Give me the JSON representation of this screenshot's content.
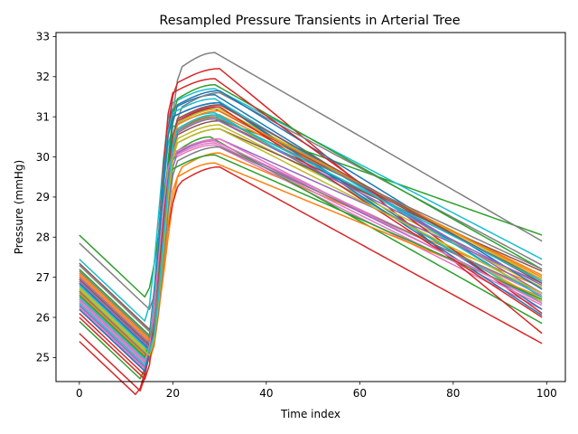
{
  "chart_data": {
    "type": "line",
    "title": "Resampled Pressure Transients in Arterial Tree",
    "xlabel": "Time index",
    "ylabel": "Pressure (mmHg)",
    "xlim": [
      -5,
      104
    ],
    "ylim": [
      24.4,
      33.1
    ],
    "xticks": [
      0,
      20,
      40,
      60,
      80,
      100
    ],
    "yticks": [
      25,
      26,
      27,
      28,
      29,
      30,
      31,
      32,
      33
    ],
    "grid": false,
    "legend": "none",
    "n_points": 100,
    "series": [
      {
        "color": "#1f77b4",
        "start": 26.65,
        "onset": 14,
        "rise": 6,
        "peak_time": 27,
        "peak": 31.55,
        "end": 26.5
      },
      {
        "color": "#ff7f0e",
        "start": 26.95,
        "onset": 15,
        "rise": 7,
        "peak_time": 28,
        "peak": 30.1,
        "end": 26.75
      },
      {
        "color": "#2ca02c",
        "start": 28.05,
        "onset": 14,
        "rise": 7,
        "peak_time": 27,
        "peak": 30.95,
        "end": 28.05
      },
      {
        "color": "#d62728",
        "start": 25.4,
        "onset": 12,
        "rise": 10,
        "peak_time": 28,
        "peak": 29.75,
        "end": 25.35
      },
      {
        "color": "#9467bd",
        "start": 26.3,
        "onset": 14,
        "rise": 6,
        "peak_time": 27,
        "peak": 30.4,
        "end": 26.4
      },
      {
        "color": "#8c564b",
        "start": 26.85,
        "onset": 15,
        "rise": 6,
        "peak_time": 28,
        "peak": 30.9,
        "end": 26.95
      },
      {
        "color": "#e377c2",
        "start": 26.2,
        "onset": 14,
        "rise": 6,
        "peak_time": 27,
        "peak": 30.3,
        "end": 26.2
      },
      {
        "color": "#7f7f7f",
        "start": 27.85,
        "onset": 15,
        "rise": 7,
        "peak_time": 27,
        "peak": 32.6,
        "end": 27.9
      },
      {
        "color": "#bcbd22",
        "start": 26.55,
        "onset": 15,
        "rise": 6,
        "peak_time": 28,
        "peak": 31.0,
        "end": 26.4
      },
      {
        "color": "#17becf",
        "start": 27.45,
        "onset": 14,
        "rise": 6,
        "peak_time": 27,
        "peak": 31.7,
        "end": 27.45
      },
      {
        "color": "#1f77b4",
        "start": 26.45,
        "onset": 14,
        "rise": 6,
        "peak_time": 28,
        "peak": 31.35,
        "end": 26.2
      },
      {
        "color": "#ff7f0e",
        "start": 27.05,
        "onset": 15,
        "rise": 6,
        "peak_time": 28,
        "peak": 31.05,
        "end": 27.05
      },
      {
        "color": "#2ca02c",
        "start": 25.9,
        "onset": 13,
        "rise": 8,
        "peak_time": 26,
        "peak": 30.5,
        "end": 25.85
      },
      {
        "color": "#d62728",
        "start": 25.6,
        "onset": 13,
        "rise": 8,
        "peak_time": 28,
        "peak": 32.2,
        "end": 25.6
      },
      {
        "color": "#9467bd",
        "start": 26.6,
        "onset": 15,
        "rise": 6,
        "peak_time": 29,
        "peak": 31.3,
        "end": 26.6
      },
      {
        "color": "#8c564b",
        "start": 26.7,
        "onset": 15,
        "rise": 6,
        "peak_time": 27,
        "peak": 31.2,
        "end": 26.9
      },
      {
        "color": "#e377c2",
        "start": 26.4,
        "onset": 14,
        "rise": 6,
        "peak_time": 27,
        "peak": 30.4,
        "end": 26.55
      },
      {
        "color": "#7f7f7f",
        "start": 27.3,
        "onset": 15,
        "rise": 7,
        "peak_time": 28,
        "peak": 31.6,
        "end": 27.3
      },
      {
        "color": "#bcbd22",
        "start": 26.75,
        "onset": 15,
        "rise": 6,
        "peak_time": 28,
        "peak": 30.8,
        "end": 26.75
      },
      {
        "color": "#17becf",
        "start": 26.35,
        "onset": 14,
        "rise": 6,
        "peak_time": 27,
        "peak": 31.1,
        "end": 26.35
      },
      {
        "color": "#1f77b4",
        "start": 26.85,
        "onset": 15,
        "rise": 6,
        "peak_time": 28,
        "peak": 31.65,
        "end": 26.7
      },
      {
        "color": "#ff7f0e",
        "start": 26.6,
        "onset": 15,
        "rise": 6,
        "peak_time": 27,
        "peak": 29.85,
        "end": 26.5
      },
      {
        "color": "#2ca02c",
        "start": 27.2,
        "onset": 15,
        "rise": 6,
        "peak_time": 27,
        "peak": 31.8,
        "end": 27.2
      },
      {
        "color": "#d62728",
        "start": 26.1,
        "onset": 14,
        "rise": 6,
        "peak_time": 27,
        "peak": 31.95,
        "end": 26.1
      },
      {
        "color": "#9467bd",
        "start": 26.9,
        "onset": 15,
        "rise": 6,
        "peak_time": 28,
        "peak": 30.45,
        "end": 26.85
      },
      {
        "color": "#8c564b",
        "start": 27.35,
        "onset": 15,
        "rise": 6,
        "peak_time": 28,
        "peak": 30.7,
        "end": 27.15
      },
      {
        "color": "#e377c2",
        "start": 26.25,
        "onset": 14,
        "rise": 6,
        "peak_time": 27,
        "peak": 30.35,
        "end": 26.3
      },
      {
        "color": "#7f7f7f",
        "start": 26.65,
        "onset": 15,
        "rise": 6,
        "peak_time": 28,
        "peak": 30.25,
        "end": 26.6
      },
      {
        "color": "#bcbd22",
        "start": 26.95,
        "onset": 15,
        "rise": 6,
        "peak_time": 28,
        "peak": 31.2,
        "end": 26.95
      },
      {
        "color": "#17becf",
        "start": 26.5,
        "onset": 14,
        "rise": 6,
        "peak_time": 27,
        "peak": 31.45,
        "end": 26.5
      },
      {
        "color": "#1f77b4",
        "start": 26.2,
        "onset": 14,
        "rise": 6,
        "peak_time": 28,
        "peak": 31.35,
        "end": 26.05
      },
      {
        "color": "#ff7f0e",
        "start": 27.1,
        "onset": 15,
        "rise": 6,
        "peak_time": 28,
        "peak": 31.15,
        "end": 27.0
      },
      {
        "color": "#2ca02c",
        "start": 26.55,
        "onset": 14,
        "rise": 6,
        "peak_time": 27,
        "peak": 30.05,
        "end": 26.45
      },
      {
        "color": "#d62728",
        "start": 26.0,
        "onset": 14,
        "rise": 7,
        "peak_time": 28,
        "peak": 31.25,
        "end": 26.0
      },
      {
        "color": "#9467bd",
        "start": 27.0,
        "onset": 15,
        "rise": 6,
        "peak_time": 27,
        "peak": 30.95,
        "end": 26.8
      },
      {
        "color": "#8c564b",
        "start": 26.95,
        "onset": 15,
        "rise": 6,
        "peak_time": 28,
        "peak": 31.3,
        "end": 26.85
      },
      {
        "color": "#e377c2",
        "start": 26.45,
        "onset": 14,
        "rise": 6,
        "peak_time": 28,
        "peak": 30.45,
        "end": 26.35
      },
      {
        "color": "#7f7f7f",
        "start": 27.15,
        "onset": 15,
        "rise": 6,
        "peak_time": 27,
        "peak": 31.0,
        "end": 27.2
      },
      {
        "color": "#bcbd22",
        "start": 26.7,
        "onset": 15,
        "rise": 6,
        "peak_time": 28,
        "peak": 30.7,
        "end": 26.6
      },
      {
        "color": "#17becf",
        "start": 26.8,
        "onset": 15,
        "rise": 6,
        "peak_time": 27,
        "peak": 31.05,
        "end": 26.9
      }
    ]
  }
}
